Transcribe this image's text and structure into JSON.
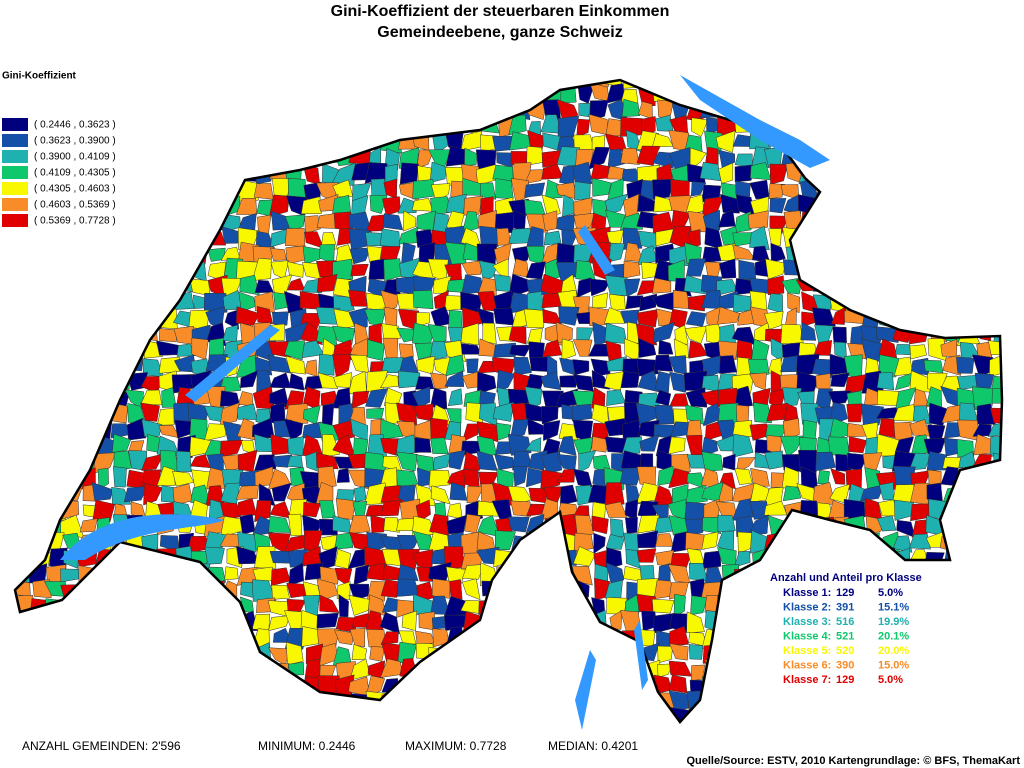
{
  "header": {
    "title": [
      "Gini-Koeffizient der steuerbaren Einkommen",
      "Gemeindeebene, ganze Schweiz"
    ]
  },
  "legend": {
    "title": "Gini-Koeffizient",
    "classes": [
      {
        "label": "( 0.2446 , 0.3623 )",
        "color": "#00007f"
      },
      {
        "label": "( 0.3623 , 0.3900 )",
        "color": "#1450a8"
      },
      {
        "label": "( 0.3900 , 0.4109 )",
        "color": "#1fb0b0"
      },
      {
        "label": "( 0.4109 , 0.4305 )",
        "color": "#10c86c"
      },
      {
        "label": "( 0.4305 , 0.4603 )",
        "color": "#f8f800"
      },
      {
        "label": "( 0.4603 , 0.5369 )",
        "color": "#f88c28"
      },
      {
        "label": "( 0.5369 , 0.7728 )",
        "color": "#e00000"
      }
    ]
  },
  "stats": {
    "title": "Anzahl und Anteil pro Klasse",
    "rows": [
      [
        "Klasse 1:",
        "129",
        "5.0%"
      ],
      [
        "Klasse 2:",
        "391",
        "15.1%"
      ],
      [
        "Klasse 3:",
        "516",
        "19.9%"
      ],
      [
        "Klasse 4:",
        "521",
        "20.1%"
      ],
      [
        "Klasse 5:",
        "520",
        "20.0%"
      ],
      [
        "Klasse 6:",
        "390",
        "15.0%"
      ],
      [
        "Klasse 7:",
        "129",
        "5.0%"
      ]
    ]
  },
  "footer": {
    "items": [
      "ANZAHL GEMEINDEN: 2'596",
      "MINIMUM: 0.2446",
      "MAXIMUM: 0.7728",
      "MEDIAN: 0.4201"
    ],
    "source": "Quelle/Source: ESTV, 2010 Kartengrundlage: © BFS, ThemaKart"
  }
}
